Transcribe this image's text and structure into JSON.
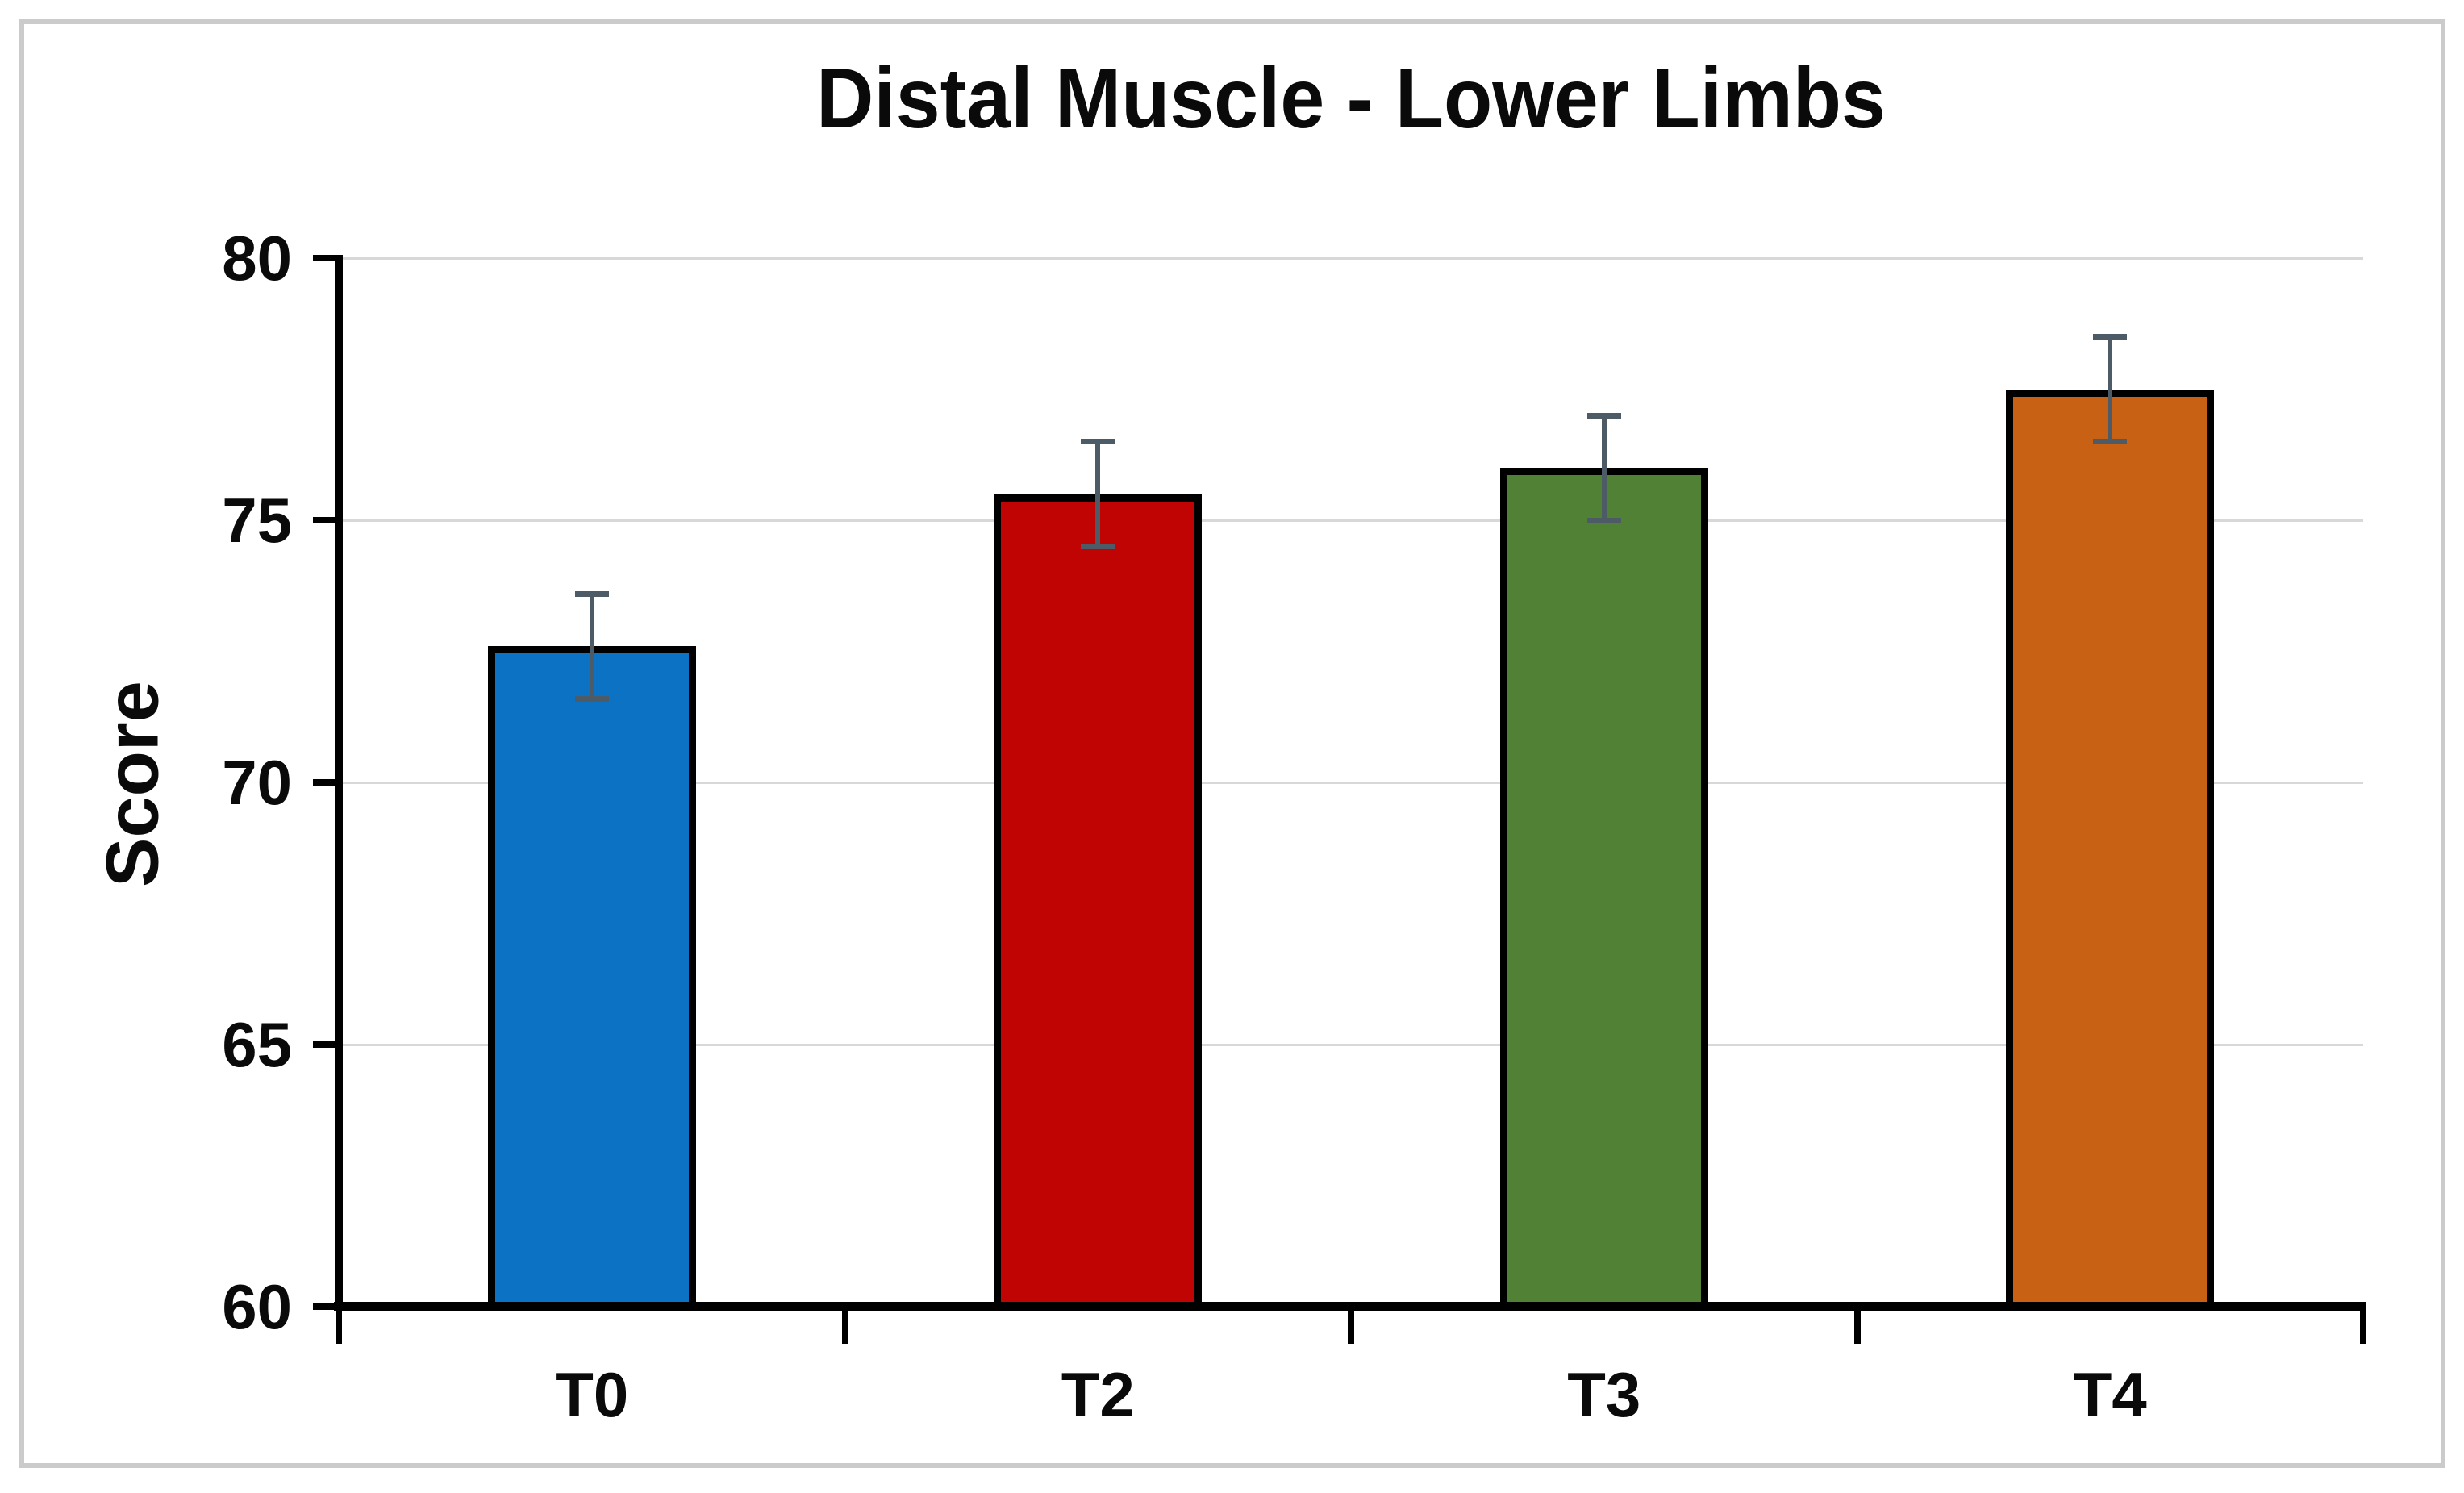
{
  "figure": {
    "frame_color": "#CBCBCB",
    "background": "#FFFFFF"
  },
  "chart_data": {
    "type": "bar",
    "title": "Distal Muscle - Lower Limbs",
    "xlabel": "",
    "ylabel": "Score",
    "categories": [
      "T0",
      "T2",
      "T3",
      "T4"
    ],
    "values": [
      72.6,
      75.5,
      76.0,
      77.5
    ],
    "error_bars": [
      1.0,
      1.0,
      1.0,
      1.0
    ],
    "bar_colors": [
      "#0C72C4",
      "#C00404",
      "#518134",
      "#C96114"
    ],
    "bar_border_color": "#000000",
    "error_bar_color": "#4D5B66",
    "ylim": [
      60,
      80
    ],
    "yticks": [
      60,
      65,
      70,
      75,
      80
    ],
    "grid": true,
    "gridline_color": "#D8D8D8",
    "axis_color": "#000000",
    "legend_position": "none"
  }
}
